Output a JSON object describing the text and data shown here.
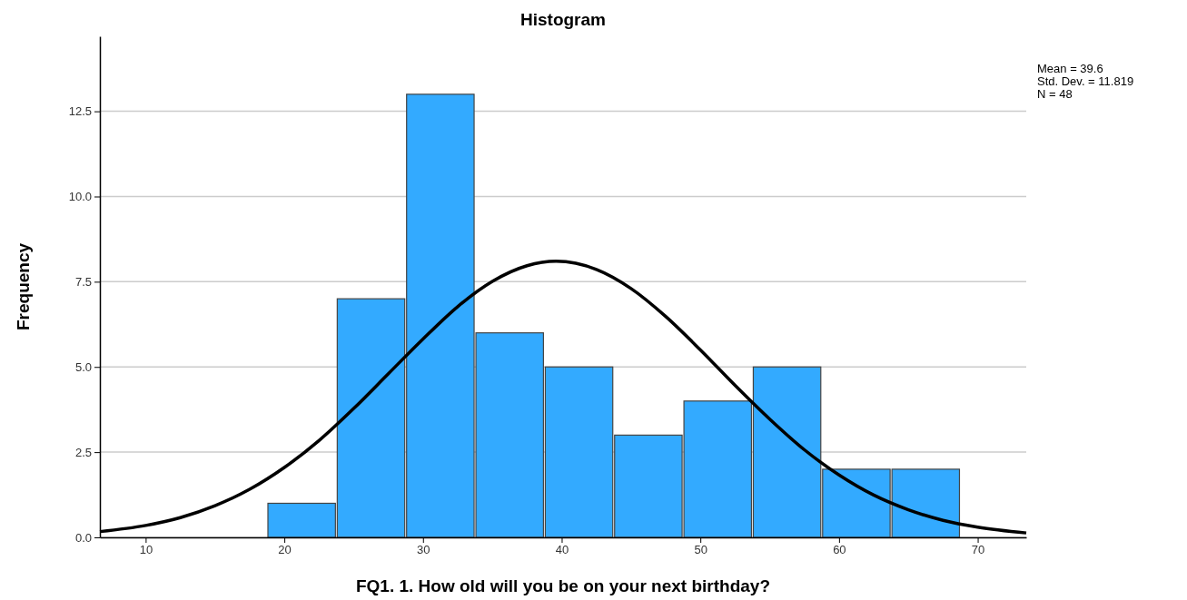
{
  "chart_data": {
    "type": "histogram",
    "title": "Histogram",
    "xlabel": "FQ1. 1. How old will you be on your next birthday?",
    "ylabel": "Frequency",
    "bins": [
      18.75,
      23.75,
      28.75,
      33.75,
      38.75,
      43.75,
      48.75,
      53.75,
      58.75,
      63.75,
      68.75
    ],
    "values": [
      1,
      7,
      13,
      6,
      5,
      3,
      4,
      5,
      2,
      2
    ],
    "color": "#33aaff",
    "series": [
      {
        "type": "line",
        "color": "#000000",
        "x": [
          6.7,
          10,
          12.5,
          15,
          17.5,
          20,
          22.5,
          25,
          27.5,
          30,
          32.5,
          35,
          37.5,
          39.6,
          42.5,
          45,
          47.5,
          50,
          52.5,
          55,
          57.5,
          60,
          62.5,
          65,
          67.5,
          70,
          73.5
        ],
        "values": [
          0.17,
          0.35,
          0.58,
          0.93,
          1.41,
          2.05,
          2.84,
          3.78,
          4.8,
          5.82,
          6.77,
          7.51,
          7.97,
          8.1,
          7.86,
          7.3,
          6.48,
          5.5,
          4.46,
          3.47,
          2.57,
          1.83,
          1.24,
          0.81,
          0.5,
          0.3,
          0.13
        ]
      }
    ],
    "xlim": [
      6.7,
      73.5
    ],
    "xticks": [
      10,
      20,
      30,
      40,
      50,
      60,
      70
    ],
    "ylim": [
      0,
      14.7
    ],
    "yticks": [
      {
        "value": 0,
        "label": "0.0"
      },
      {
        "value": 2.5,
        "label": "2.5"
      },
      {
        "value": 5,
        "label": "5.0"
      },
      {
        "value": 7.5,
        "label": "7.5"
      },
      {
        "value": 10,
        "label": "10.0"
      },
      {
        "value": 12.5,
        "label": "12.5"
      }
    ],
    "grid": "y",
    "annotations": [
      "Mean = 39.6",
      "Std. Dev. = 11.819",
      "N = 48"
    ]
  }
}
